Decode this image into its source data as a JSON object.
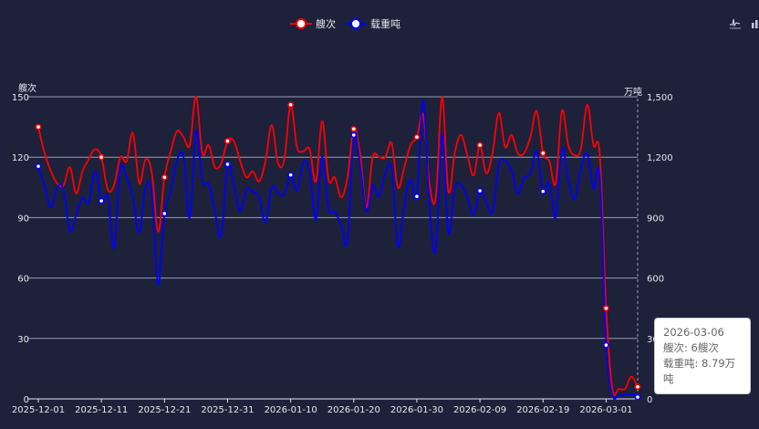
{
  "legend": [
    {
      "name": "艘次",
      "color": "#ff0000"
    },
    {
      "name": "载重吨",
      "color": "#0000ff"
    }
  ],
  "toolbox": [
    {
      "icon": "line-chart-icon"
    },
    {
      "icon": "bar-chart-icon"
    }
  ],
  "tooltip": {
    "date": "2026-03-06",
    "line1": "艘次: 6艘次",
    "line2": "载重吨: 8.79万吨"
  },
  "chart_data": {
    "type": "line",
    "start_date": "2025-12-01",
    "x_tick_labels": [
      "2025-12-01",
      "2025-12-11",
      "2025-12-21",
      "2025-12-31",
      "2026-01-10",
      "2026-01-20",
      "2026-01-30",
      "2026-02-09",
      "2026-02-19",
      "2026-03-01"
    ],
    "x_tick_interval_days": 10,
    "y_left": {
      "name": "艘次",
      "range": [
        0,
        150
      ],
      "ticks": [
        "0",
        "30",
        "60",
        "90",
        "120",
        "150"
      ]
    },
    "y_right": {
      "name": "万吨",
      "range": [
        0,
        1500
      ],
      "ticks": [
        "0",
        "300",
        "600",
        "900",
        "1,200",
        "1,500"
      ]
    },
    "grid": true,
    "legend_position": "top-center",
    "series": [
      {
        "name": "艘次",
        "axis": "left",
        "color": "#ff0000",
        "values": [
          135,
          122,
          113,
          107,
          106,
          115,
          102,
          113,
          119,
          124,
          120,
          104,
          106,
          120,
          118,
          132,
          107,
          119,
          112,
          83,
          110,
          123,
          133,
          130,
          126,
          150,
          122,
          126,
          115,
          117,
          128,
          128,
          118,
          110,
          113,
          108,
          118,
          136,
          117,
          119,
          146,
          125,
          123,
          124,
          108,
          138,
          109,
          110,
          100,
          110,
          134,
          122,
          95,
          120,
          120,
          120,
          127,
          105,
          115,
          126,
          130,
          141,
          107,
          100,
          150,
          103,
          122,
          131,
          121,
          111,
          126,
          112,
          122,
          142,
          125,
          131,
          122,
          122,
          130,
          143,
          122,
          118,
          107,
          143,
          126,
          121,
          124,
          146,
          126,
          121,
          45,
          5,
          5,
          5,
          11,
          6
        ]
      },
      {
        "name": "载重吨",
        "axis": "right",
        "color": "#0000ff",
        "values": [
          1155,
          1059,
          950,
          1051,
          1036,
          832,
          915,
          998,
          976,
          1131,
          983,
          1006,
          749,
          1142,
          1097,
          998,
          825,
          1051,
          1014,
          568,
          920,
          1029,
          1187,
          1202,
          900,
          1331,
          1082,
          1067,
          930,
          810,
          1165,
          1059,
          933,
          1041,
          1029,
          998,
          877,
          1051,
          1021,
          1017,
          1112,
          1036,
          1172,
          1134,
          890,
          1202,
          946,
          930,
          862,
          784,
          1310,
          1164,
          930,
          1059,
          1006,
          1120,
          1142,
          756,
          953,
          1089,
          1005,
          1482,
          953,
          741,
          1315,
          825,
          1044,
          1062,
          998,
          915,
          1033,
          976,
          930,
          1164,
          1182,
          1134,
          1021,
          1097,
          1120,
          1232,
          1030,
          1074,
          900,
          1240,
          1089,
          991,
          1142,
          1217,
          1044,
          1104,
          267,
          20,
          17,
          20,
          24,
          8.79
        ]
      }
    ],
    "marker_every_days": 10
  }
}
